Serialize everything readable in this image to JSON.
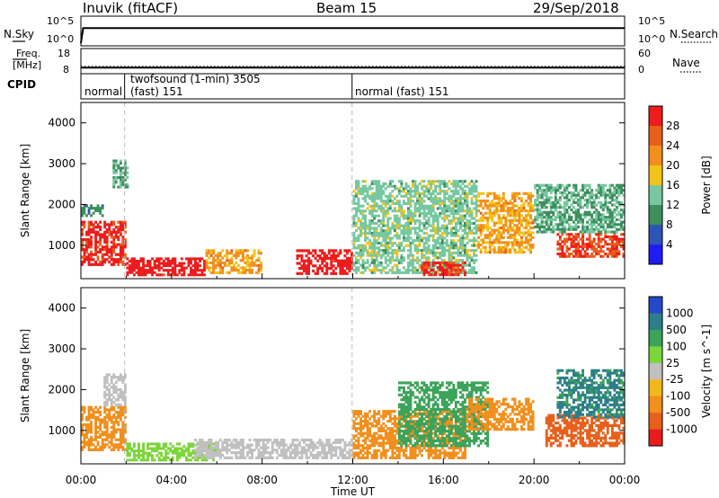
{
  "header": {
    "station": "Inuvik (fitACF)",
    "beam": "Beam 15",
    "date": "29/Sep/2018"
  },
  "nsky_panel": {
    "label": "N.Sky",
    "left_ticks": [
      "10^5",
      "10^0"
    ],
    "right_ticks": [
      "10^5",
      "10^0"
    ],
    "right_label": "N.Search"
  },
  "freq_panel": {
    "label_line1": "Freq.",
    "label_line2": "[MHz]",
    "left_ticks": [
      "18",
      "8"
    ],
    "right_ticks": [
      "60",
      "0"
    ],
    "right_label": "Nave"
  },
  "cpid_panel": {
    "label": "CPID",
    "segments": [
      {
        "start": 0.0,
        "end": 1.93,
        "text1": "normal",
        "text2": ""
      },
      {
        "start": 1.93,
        "end": 11.97,
        "text1": "twofsound (1-min) 3505",
        "text2": "(fast) 151"
      },
      {
        "start": 11.97,
        "end": 24.0,
        "text1": "normal (fast) 151",
        "text2": ""
      }
    ]
  },
  "x_axis": {
    "label": "Time UT",
    "ticks": [
      "00:00",
      "04:00",
      "08:00",
      "12:00",
      "16:00",
      "20:00",
      "00:00"
    ]
  },
  "colors": {
    "power_scale": [
      "#1d1df2",
      "#2f55b4",
      "#3e8e5e",
      "#77c8a0",
      "#f2c319",
      "#f28f1d",
      "#e85f1c",
      "#ee1c1c"
    ],
    "velocity_scale": [
      "#2548c8",
      "#2d7e8a",
      "#3ca35a",
      "#7cd63a",
      "#c0c0c0",
      "#f2b71a",
      "#f28f1d",
      "#e8601c",
      "#e81c1c"
    ],
    "guide_line": "#bbbbbb"
  },
  "chart_data": [
    {
      "type": "line",
      "title": "N.Sky / N.Search",
      "x": [
        0,
        0.1,
        24
      ],
      "series": [
        {
          "name": "N.Sky",
          "values": [
            1,
            1000,
            1000
          ]
        },
        {
          "name": "N.Search",
          "values": [
            10,
            1000,
            1000
          ]
        }
      ],
      "xlim": [
        0,
        24
      ],
      "ylim_left": "10^0 – 10^5",
      "ylim_right": "10^0 – 10^5",
      "y_scale": "log"
    },
    {
      "type": "line",
      "title": "Freq. / Nave",
      "x": [
        0,
        24
      ],
      "series": [
        {
          "name": "Freq. [MHz]",
          "values": [
            10,
            10
          ]
        },
        {
          "name": "Nave",
          "values": [
            15,
            15
          ]
        }
      ],
      "xlim": [
        0,
        24
      ],
      "ylim_left": [
        8,
        18
      ],
      "ylim_right": [
        0,
        60
      ]
    },
    {
      "type": "heatmap",
      "ylabel": "Slant Range [km]",
      "colorbar_label": "Power [dB]",
      "colorbar_ticks": [
        4,
        8,
        12,
        16,
        20,
        24,
        28
      ],
      "color_range": [
        0,
        30
      ],
      "xlabel": "Time UT",
      "xlim": [
        0,
        24
      ],
      "ylim": [
        180,
        4500
      ],
      "yticks": [
        1000,
        2000,
        3000,
        4000
      ],
      "vertical_markers": [
        1.93,
        11.97
      ],
      "regions": [
        {
          "t0": 0.0,
          "t1": 2.0,
          "r0": 500,
          "r1": 1600,
          "value": 26
        },
        {
          "t0": 0.0,
          "t1": 1.0,
          "r0": 1700,
          "r1": 2000,
          "value": 8
        },
        {
          "t0": 1.4,
          "t1": 2.1,
          "r0": 2400,
          "r1": 3100,
          "value": 10
        },
        {
          "t0": 2.0,
          "t1": 5.5,
          "r0": 250,
          "r1": 700,
          "value": 28
        },
        {
          "t0": 5.5,
          "t1": 8.0,
          "r0": 300,
          "r1": 900,
          "value": 18
        },
        {
          "t0": 9.5,
          "t1": 12.0,
          "r0": 280,
          "r1": 900,
          "value": 28
        },
        {
          "t0": 12.0,
          "t1": 17.5,
          "r0": 300,
          "r1": 2600,
          "value": 12
        },
        {
          "t0": 15.0,
          "t1": 17.0,
          "r0": 250,
          "r1": 600,
          "value": 26
        },
        {
          "t0": 17.5,
          "t1": 20.0,
          "r0": 800,
          "r1": 2300,
          "value": 18
        },
        {
          "t0": 21.0,
          "t1": 24.0,
          "r0": 700,
          "r1": 1300,
          "value": 24
        },
        {
          "t0": 20.0,
          "t1": 24.0,
          "r0": 1300,
          "r1": 2500,
          "value": 10
        }
      ]
    },
    {
      "type": "heatmap",
      "ylabel": "Slant Range [km]",
      "colorbar_label": "Velocity [m s^-1]",
      "colorbar_ticks": [
        1000,
        500,
        100,
        25,
        -25,
        -100,
        -500,
        -1000
      ],
      "color_range": [
        -1000,
        1000
      ],
      "xlabel": "Time UT",
      "xlim": [
        0,
        24
      ],
      "ylim": [
        180,
        4500
      ],
      "yticks": [
        1000,
        2000,
        3000,
        4000
      ],
      "vertical_markers": [
        1.93,
        11.97
      ],
      "regions": [
        {
          "t0": 0.0,
          "t1": 2.0,
          "r0": 500,
          "r1": 1600,
          "value": -300
        },
        {
          "t0": 1.0,
          "t1": 2.0,
          "r0": 1600,
          "r1": 2400,
          "value": 10
        },
        {
          "t0": 2.0,
          "t1": 6.0,
          "r0": 250,
          "r1": 700,
          "value": 50
        },
        {
          "t0": 5.0,
          "t1": 12.0,
          "r0": 300,
          "r1": 800,
          "value": 0
        },
        {
          "t0": 12.0,
          "t1": 17.0,
          "r0": 300,
          "r1": 1500,
          "value": -150
        },
        {
          "t0": 14.0,
          "t1": 18.0,
          "r0": 600,
          "r1": 2200,
          "value": 300
        },
        {
          "t0": 17.0,
          "t1": 20.0,
          "r0": 1000,
          "r1": 1800,
          "value": -300
        },
        {
          "t0": 20.5,
          "t1": 24.0,
          "r0": 600,
          "r1": 1400,
          "value": -600
        },
        {
          "t0": 21.0,
          "t1": 24.0,
          "r0": 1300,
          "r1": 2500,
          "value": 500
        }
      ]
    }
  ]
}
